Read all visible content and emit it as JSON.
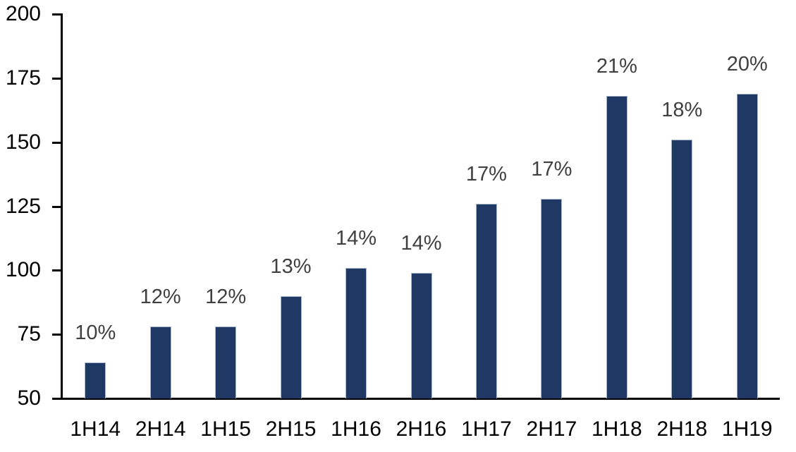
{
  "chart_data": {
    "type": "bar",
    "title": "",
    "xlabel": "",
    "ylabel": "",
    "categories": [
      "1H14",
      "2H14",
      "1H15",
      "2H15",
      "1H16",
      "2H16",
      "1H17",
      "2H17",
      "1H18",
      "2H18",
      "1H19"
    ],
    "values": [
      64,
      78,
      78,
      90,
      101,
      99,
      126,
      128,
      168,
      151,
      169
    ],
    "bar_labels": [
      "10%",
      "12%",
      "12%",
      "13%",
      "14%",
      "14%",
      "17%",
      "17%",
      "21%",
      "18%",
      "20%"
    ],
    "ylim": [
      50,
      200
    ],
    "yticks": [
      50,
      75,
      100,
      125,
      150,
      175,
      200
    ],
    "grid": false,
    "legend": false,
    "colors": {
      "bar_fill": "#1f3864",
      "bar_border": "#a7b6ca",
      "axis": "#000000",
      "axis_tick_label": "#000000",
      "data_label": "#404040",
      "background": "#ffffff"
    }
  }
}
